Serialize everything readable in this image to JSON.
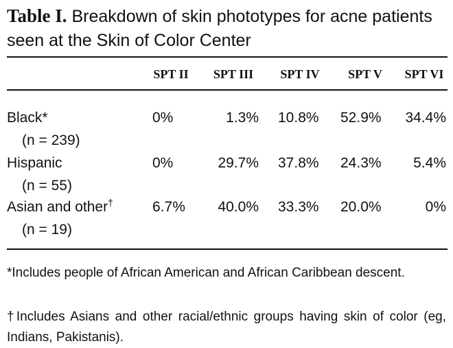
{
  "table": {
    "label": "Table I.",
    "caption": "Breakdown of skin phototypes for acne patients seen at the Skin of Color Center",
    "columns": [
      "SPT II",
      "SPT III",
      "SPT IV",
      "SPT V",
      "SPT VI"
    ],
    "rows": [
      {
        "label": "Black*",
        "n": "(n = 239)",
        "values": [
          "0%",
          "1.3%",
          "10.8%",
          "52.9%",
          "34.4%"
        ]
      },
      {
        "label": "Hispanic",
        "n": "(n = 55)",
        "values": [
          "0%",
          "29.7%",
          "37.8%",
          "24.3%",
          "5.4%"
        ]
      },
      {
        "label": "Asian and other",
        "marker": "†",
        "n": "(n = 19)",
        "values": [
          "6.7%",
          "40.0%",
          "33.3%",
          "20.0%",
          "0%"
        ]
      }
    ],
    "footnotes": [
      "*Includes people of African American and African Caribbean descent.",
      "†Includes Asians and other racial/ethnic groups having skin of color (eg, Indians, Pakistanis)."
    ]
  }
}
